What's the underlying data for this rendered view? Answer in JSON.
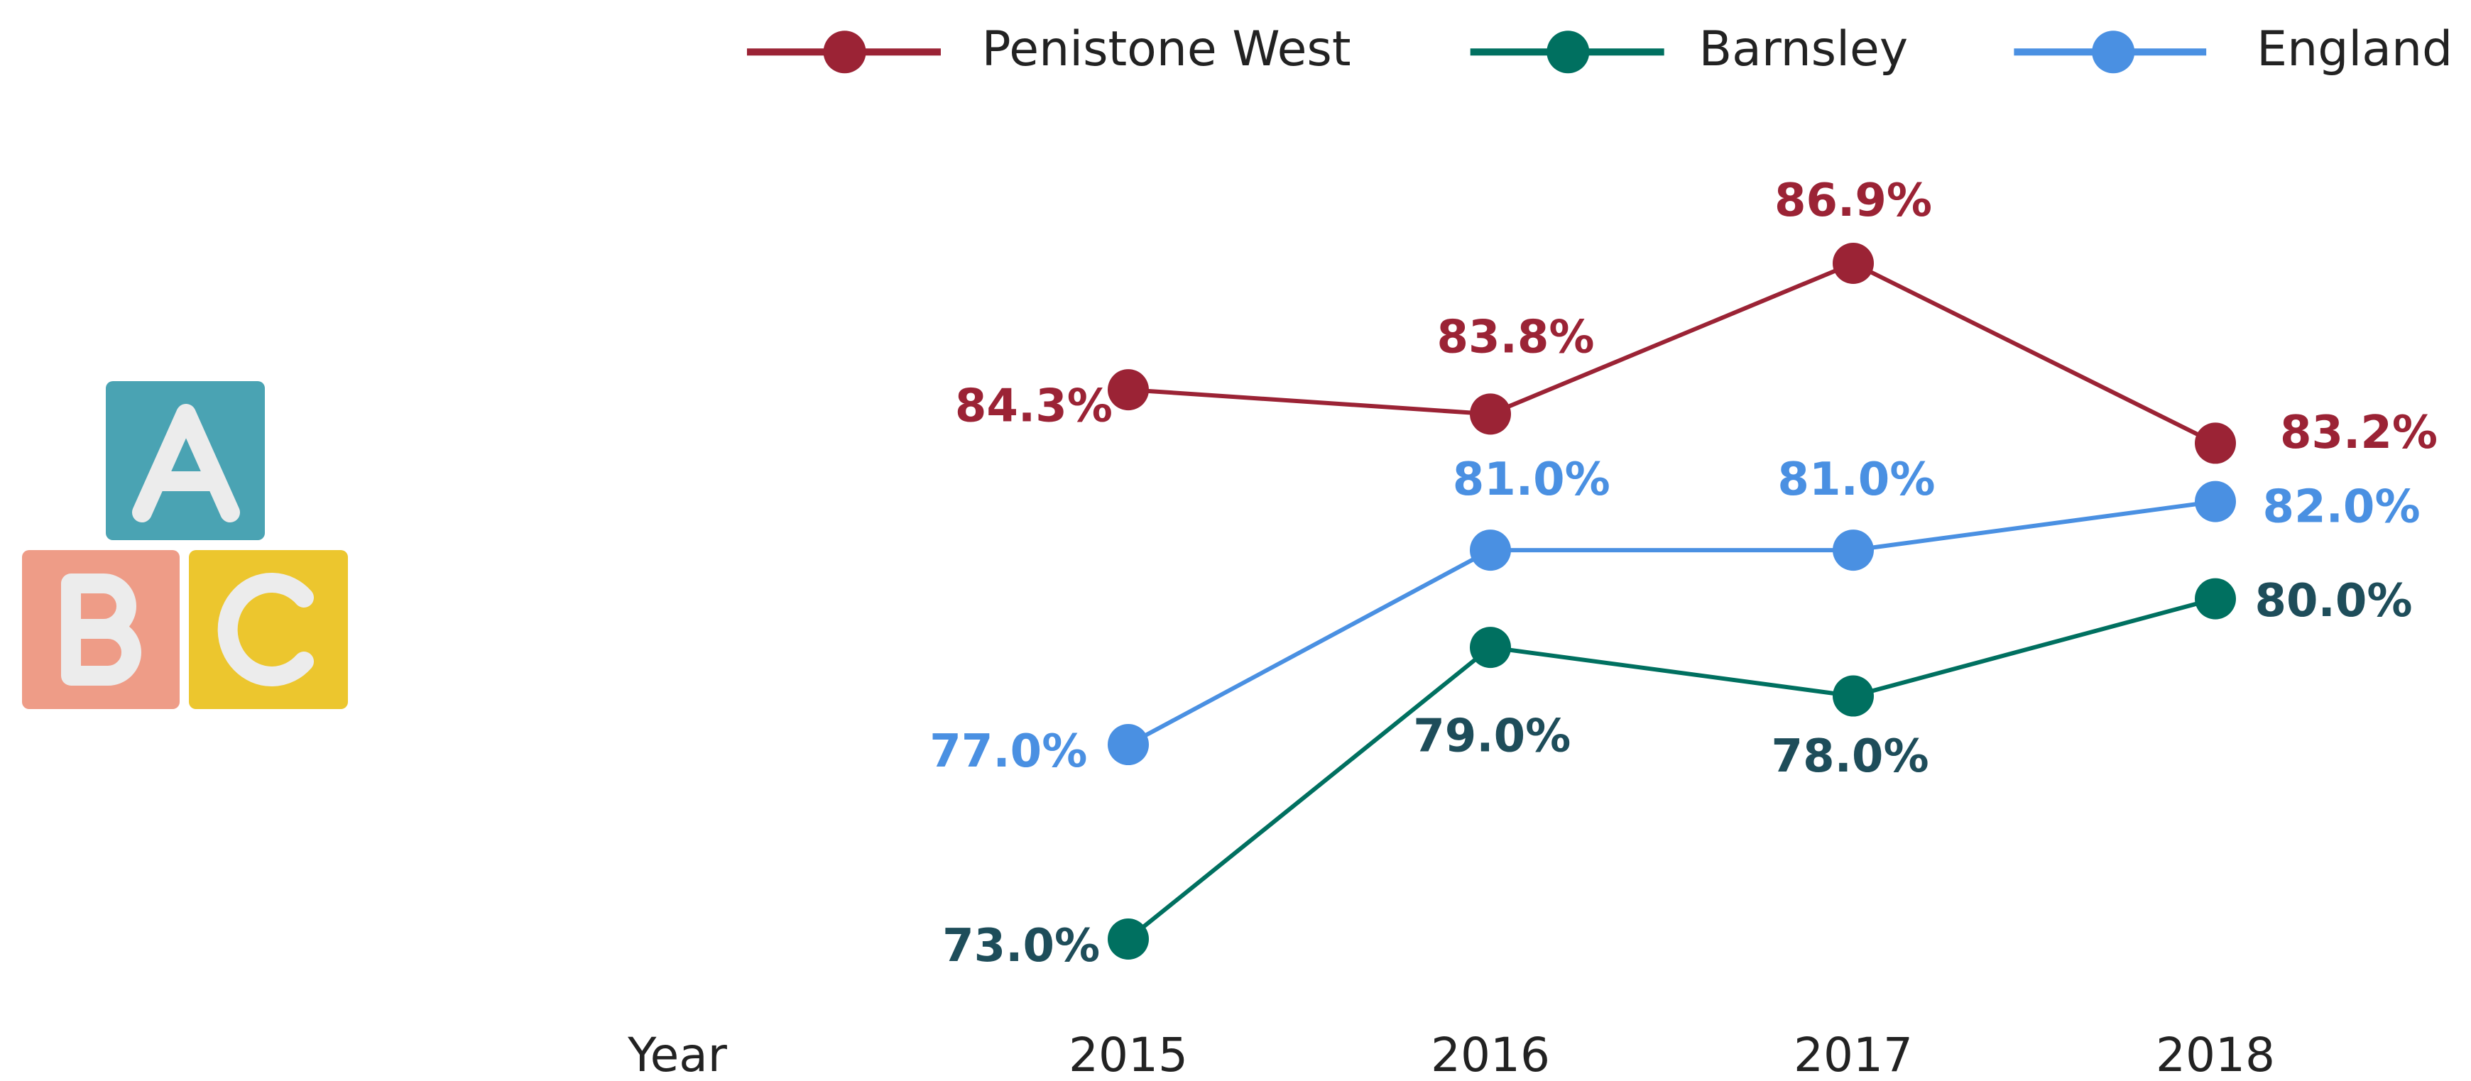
{
  "chart_data": {
    "type": "line",
    "x_label": "Year",
    "categories": [
      "2015",
      "2016",
      "2017",
      "2018"
    ],
    "series": [
      {
        "name": "Penistone West",
        "color": "#9b2335",
        "label_color": "#9b2335",
        "values": [
          84.3,
          83.8,
          86.9,
          83.2
        ],
        "value_labels": [
          "84.3%",
          "83.8%",
          "86.9%",
          "83.2%"
        ]
      },
      {
        "name": "Barnsley",
        "color": "#007060",
        "label_color": "#1e4d5a",
        "values": [
          73.0,
          79.0,
          78.0,
          80.0
        ],
        "value_labels": [
          "73.0%",
          "79.0%",
          "78.0%",
          "80.0%"
        ]
      },
      {
        "name": "England",
        "color": "#4a90e2",
        "label_color": "#4a90e2",
        "values": [
          77.0,
          81.0,
          81.0,
          82.0
        ],
        "value_labels": [
          "77.0%",
          "81.0%",
          "81.0%",
          "82.0%"
        ]
      }
    ],
    "legend": "top"
  }
}
